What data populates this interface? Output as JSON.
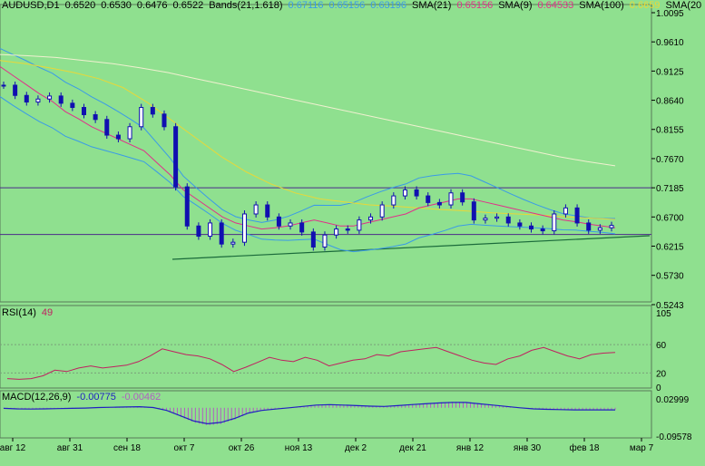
{
  "colors": {
    "background": "#8fe08f",
    "price_candles": "#1010b0",
    "bands": "#3a9ae8",
    "sma21": "#e0308a",
    "sma9": "#e0308a",
    "sma100": "#e8d838",
    "sma200": "#f0f0d0",
    "horizontal_lines": "#4b2a8a",
    "trendline": "#1a6a3a",
    "rsi_line": "#c02060",
    "macd_hist": "#b060c0",
    "macd_signal": "#2020c0"
  },
  "header": {
    "symbol": "AUDUSD,D1",
    "ohlc": [
      "0.6520",
      "0.6530",
      "0.6476",
      "0.6522"
    ],
    "bands_label": "Bands(21,1.618)",
    "bands_values": [
      "0.67116",
      "0.65156",
      "0.63196"
    ],
    "sma21_label": "SMA(21)",
    "sma21_value": "0.65156",
    "sma9_label": "SMA(9)",
    "sma9_value": "0.64533",
    "sma100_label": "SMA(100)",
    "sma100_value": "0.6659",
    "sma200_label": "SMA(20"
  },
  "rsi_header": {
    "label": "RSI(14)",
    "value": "49"
  },
  "macd_header": {
    "label": "MACD(12,26,9)",
    "value1": "-0.00775",
    "value2": "-0.00462"
  },
  "price_axis": [
    "1.0095",
    "0.9610",
    "0.9125",
    "0.8640",
    "0.8155",
    "0.7670",
    "0.7185",
    "0.6700",
    "0.6215",
    "0.5730",
    "0.5243"
  ],
  "rsi_axis": [
    "105",
    "60",
    "20",
    "0"
  ],
  "macd_axis": [
    "0.02999",
    "-0.09578"
  ],
  "time_axis": [
    "авг 12",
    "авг 31",
    "сен 18",
    "окт 7",
    "окт 26",
    "ноя 13",
    "дек 2",
    "дек 21",
    "янв 12",
    "янв 30",
    "фев 18",
    "мар 7"
  ],
  "chart_data": {
    "type": "line",
    "title": "",
    "xlabel": "",
    "ylabel": "",
    "price_ylim": [
      0.5243,
      1.0095
    ],
    "horizontal_levels": [
      0.7185,
      0.6408
    ],
    "series": [
      {
        "name": "AUDUSD,D1",
        "values": [
          0.889,
          0.872,
          0.861,
          0.866,
          0.871,
          0.859,
          0.852,
          0.84,
          0.832,
          0.806,
          0.8,
          0.82,
          0.852,
          0.841,
          0.82,
          0.72,
          0.655,
          0.638,
          0.66,
          0.625,
          0.628,
          0.675,
          0.69,
          0.67,
          0.655,
          0.66,
          0.645,
          0.62,
          0.64,
          0.65,
          0.648,
          0.665,
          0.67,
          0.69,
          0.705,
          0.715,
          0.705,
          0.694,
          0.69,
          0.71,
          0.695,
          0.665,
          0.668,
          0.67,
          0.66,
          0.655,
          0.65,
          0.647,
          0.675,
          0.685,
          0.66,
          0.648,
          0.652,
          0.656
        ]
      },
      {
        "name": "SMA(21)",
        "values": [
          0.92,
          0.905,
          0.89,
          0.875,
          0.862,
          0.845,
          0.833,
          0.82,
          0.81,
          0.8,
          0.79,
          0.78,
          0.76,
          0.74,
          0.715,
          0.7,
          0.685,
          0.67,
          0.66,
          0.655,
          0.65,
          0.652,
          0.655,
          0.66,
          0.665,
          0.66,
          0.655,
          0.655,
          0.66,
          0.665,
          0.67,
          0.675,
          0.685,
          0.69,
          0.695,
          0.7,
          0.7,
          0.695,
          0.69,
          0.685,
          0.68,
          0.675,
          0.67,
          0.665,
          0.662,
          0.658,
          0.655,
          0.652
        ]
      },
      {
        "name": "SMA(100)",
        "values": [
          0.93,
          0.925,
          0.918,
          0.91,
          0.9,
          0.885,
          0.86,
          0.83,
          0.8,
          0.77,
          0.745,
          0.725,
          0.71,
          0.7,
          0.695,
          0.69,
          0.688,
          0.685,
          0.682,
          0.68,
          0.677,
          0.675,
          0.673,
          0.67,
          0.668,
          0.666
        ]
      },
      {
        "name": "SMA(200)",
        "values": [
          0.94,
          0.938,
          0.935,
          0.93,
          0.925,
          0.918,
          0.91,
          0.9,
          0.89,
          0.88,
          0.87,
          0.86,
          0.85,
          0.84,
          0.83,
          0.82,
          0.81,
          0.8,
          0.79,
          0.78,
          0.77,
          0.762,
          0.755
        ]
      }
    ],
    "rsi": {
      "ylim": [
        0,
        105
      ],
      "levels": [
        20,
        60
      ],
      "values": [
        12,
        11,
        12,
        16,
        24,
        22,
        27,
        30,
        27,
        29,
        31,
        36,
        44,
        54,
        50,
        46,
        44,
        40,
        32,
        22,
        28,
        35,
        42,
        38,
        36,
        42,
        38,
        30,
        34,
        38,
        40,
        46,
        44,
        50,
        52,
        54,
        56,
        50,
        44,
        38,
        34,
        32,
        40,
        44,
        52,
        56,
        50,
        44,
        40,
        46,
        48,
        49
      ]
    },
    "macd": {
      "ylim": [
        -0.09578,
        0.02999
      ],
      "values": [
        -0.002,
        -0.004,
        -0.005,
        -0.004,
        -0.003,
        -0.002,
        -0.001,
        0.001,
        0.002,
        0.003,
        0.004,
        0.001,
        -0.01,
        -0.03,
        -0.05,
        -0.06,
        -0.055,
        -0.04,
        -0.02,
        -0.01,
        -0.005,
        0,
        0.005,
        0.01,
        0.012,
        0.01,
        0.008,
        0.006,
        0.005,
        0.008,
        0.012,
        0.015,
        0.018,
        0.02,
        0.02,
        0.015,
        0.01,
        0.005,
        0,
        -0.004,
        -0.006,
        -0.007,
        -0.008,
        -0.008,
        -0.0078,
        -0.00775
      ]
    }
  }
}
